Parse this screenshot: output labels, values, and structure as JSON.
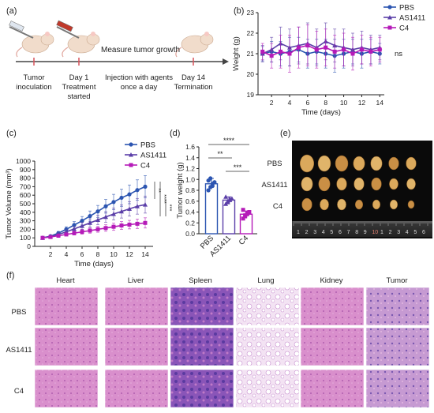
{
  "panels": {
    "a": "(a)",
    "b": "(b)",
    "c": "(c)",
    "d": "(d)",
    "e": "(e)",
    "f": "(f)"
  },
  "scheme": {
    "measure": "Measure tumor growth",
    "steps": [
      {
        "line1": "Tumor",
        "line2": "inoculation"
      },
      {
        "line1": "Day 1",
        "line2": "Treatment",
        "line3": "started"
      },
      {
        "line1": "Injection with agents",
        "line2": "once a day"
      },
      {
        "line1": "Day 14",
        "line2": "Termination"
      }
    ]
  },
  "colors": {
    "pbs": "#2c55b1",
    "as1411": "#5b3fa8",
    "c4": "#b51ab8",
    "arrow": "#d9535b"
  },
  "chart_data": [
    {
      "id": "b",
      "type": "line",
      "xlabel": "Time (days)",
      "ylabel": "Weight (g)",
      "xlim": [
        0.5,
        14.5
      ],
      "ylim": [
        19,
        23
      ],
      "xticks": [
        2,
        4,
        6,
        8,
        10,
        12,
        14
      ],
      "yticks": [
        19,
        20,
        21,
        22,
        23
      ],
      "x": [
        1,
        2,
        3,
        4,
        5,
        6,
        7,
        8,
        9,
        10,
        11,
        12,
        13,
        14
      ],
      "legend": [
        "PBS",
        "AS1411",
        "C4"
      ],
      "legend_position": "right",
      "annotation": "ns",
      "series": [
        {
          "name": "PBS",
          "values": [
            21.0,
            21.1,
            21.0,
            21.1,
            21.2,
            21.0,
            21.1,
            21.0,
            20.9,
            21.0,
            21.1,
            21.0,
            21.1,
            21.0
          ],
          "err": [
            0.35,
            0.5,
            0.6,
            0.7,
            0.6,
            0.7,
            0.6,
            0.7,
            0.8,
            0.7,
            0.6,
            0.7,
            0.6,
            0.5
          ]
        },
        {
          "name": "AS1411",
          "values": [
            21.0,
            21.2,
            21.5,
            21.3,
            21.4,
            21.5,
            21.3,
            21.6,
            21.4,
            21.3,
            21.2,
            21.3,
            21.2,
            21.3
          ],
          "err": [
            0.4,
            0.6,
            0.8,
            0.9,
            0.9,
            1.0,
            0.9,
            0.9,
            0.8,
            0.9,
            0.8,
            0.8,
            0.7,
            0.6
          ]
        },
        {
          "name": "C4",
          "values": [
            21.1,
            20.9,
            21.1,
            21.0,
            21.3,
            21.4,
            21.2,
            21.3,
            21.1,
            21.2,
            21.0,
            21.2,
            21.1,
            21.2
          ],
          "err": [
            0.4,
            0.6,
            0.8,
            0.9,
            1.0,
            1.0,
            0.9,
            0.9,
            0.8,
            0.8,
            0.8,
            0.7,
            0.7,
            0.6
          ]
        }
      ]
    },
    {
      "id": "c",
      "type": "line",
      "xlabel": "Time (days)",
      "ylabel": "Tumor Volume (mm³)",
      "xlim": [
        0,
        15
      ],
      "ylim": [
        0,
        1000
      ],
      "xticks": [
        2,
        4,
        6,
        8,
        10,
        12,
        14
      ],
      "yticks": [
        0,
        100,
        200,
        300,
        400,
        500,
        600,
        700,
        800,
        900,
        1000
      ],
      "x": [
        1,
        2,
        3,
        4,
        5,
        6,
        7,
        8,
        9,
        10,
        11,
        12,
        13,
        14
      ],
      "legend": [
        "PBS",
        "AS1411",
        "C4"
      ],
      "legend_position": "top-right",
      "significance": [
        "**",
        "****",
        "***"
      ],
      "series": [
        {
          "name": "PBS",
          "values": [
            100,
            120,
            155,
            200,
            250,
            300,
            355,
            410,
            470,
            520,
            570,
            610,
            660,
            700
          ],
          "err": [
            8,
            12,
            20,
            30,
            40,
            50,
            60,
            70,
            80,
            90,
            100,
            110,
            120,
            130
          ]
        },
        {
          "name": "AS1411",
          "values": [
            100,
            115,
            140,
            170,
            205,
            240,
            275,
            310,
            345,
            380,
            410,
            440,
            470,
            490
          ],
          "err": [
            8,
            12,
            18,
            25,
            32,
            40,
            48,
            55,
            62,
            70,
            78,
            85,
            92,
            100
          ]
        },
        {
          "name": "C4",
          "values": [
            100,
            110,
            125,
            140,
            155,
            170,
            185,
            200,
            215,
            230,
            245,
            255,
            265,
            275
          ],
          "err": [
            8,
            10,
            14,
            18,
            22,
            26,
            30,
            34,
            38,
            42,
            46,
            50,
            55,
            60
          ]
        }
      ]
    },
    {
      "id": "d",
      "type": "bar",
      "ylabel": "Tumor weight (g)",
      "ylim": [
        0,
        1.6
      ],
      "yticks": [
        0,
        0.2,
        0.4,
        0.6,
        0.8,
        1.0,
        1.2,
        1.4,
        1.6
      ],
      "yticklabels": [
        "0.0",
        "0.2",
        "0.4",
        "0.6",
        "0.8",
        "1.0",
        "1.2",
        "1.4",
        "1.6"
      ],
      "categories": [
        "PBS",
        "AS1411",
        "C4"
      ],
      "values": [
        0.92,
        0.62,
        0.36
      ],
      "err": [
        0.1,
        0.06,
        0.06
      ],
      "points": [
        [
          0.8,
          0.86,
          0.92,
          0.95,
          0.98,
          1.02,
          0.88
        ],
        [
          0.55,
          0.58,
          0.62,
          0.65,
          0.68,
          0.6,
          0.64
        ],
        [
          0.28,
          0.32,
          0.36,
          0.4,
          0.44,
          0.34,
          0.38
        ]
      ],
      "significance": [
        {
          "from": 0,
          "to": 2,
          "label": "****"
        },
        {
          "from": 0,
          "to": 1,
          "label": "**"
        },
        {
          "from": 1,
          "to": 2,
          "label": "***"
        }
      ]
    }
  ],
  "photo": {
    "rows": [
      "PBS",
      "AS1411",
      "C4"
    ],
    "ruler_digits": [
      "1",
      "2",
      "3",
      "4",
      "5",
      "6",
      "7",
      "8",
      "9",
      "10",
      "1",
      "2",
      "3",
      "4",
      "5",
      "6"
    ]
  },
  "histology": {
    "columns": [
      "Heart",
      "Liver",
      "Spleen",
      "Lung",
      "Kidney",
      "Tumor"
    ],
    "rows": [
      "PBS",
      "AS1411",
      "C4"
    ]
  }
}
